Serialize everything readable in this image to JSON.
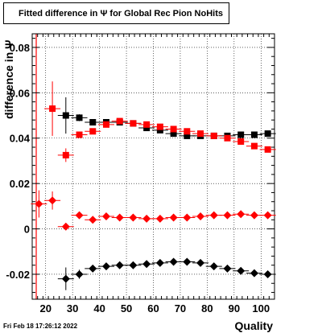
{
  "chart_data": {
    "type": "scatter",
    "title": "Fitted difference in  Ψ  for Global Rec Pion NoHits",
    "xlabel": "Quality",
    "ylabel": "difference in Ψ",
    "xlim": [
      15,
      105
    ],
    "ylim": [
      -0.031,
      0.086
    ],
    "xticks": [
      20,
      30,
      40,
      50,
      60,
      70,
      80,
      90,
      100
    ],
    "yticks": [
      -0.02,
      0,
      0.02,
      0.04,
      0.06,
      0.08
    ],
    "ytick_labels": [
      "-0.02",
      "0",
      "0.02",
      "0.04",
      "0.06",
      "0.08"
    ],
    "grid": true,
    "vertical_line_x": 16.5,
    "series": [
      {
        "marker": "square",
        "color": "#000000",
        "x": [
          27.5,
          32.5,
          37.5,
          42.5,
          47.5,
          52.5,
          57.5,
          62.5,
          67.5,
          72.5,
          77.5,
          82.5,
          87.5,
          92.5,
          97.5,
          102.5
        ],
        "y": [
          0.05,
          0.049,
          0.047,
          0.047,
          0.047,
          0.0465,
          0.0445,
          0.0435,
          0.042,
          0.041,
          0.041,
          0.041,
          0.041,
          0.0415,
          0.0415,
          0.042
        ],
        "err": [
          0.008,
          0.0015,
          0.001,
          0.001,
          0.001,
          0.001,
          0.001,
          0.001,
          0.001,
          0.001,
          0.001,
          0.001,
          0.001,
          0.001,
          0.001,
          0.001
        ]
      },
      {
        "marker": "square",
        "color": "#ff0000",
        "x": [
          22.5,
          27.5,
          32.5,
          37.5,
          42.5,
          47.5,
          52.5,
          57.5,
          62.5,
          67.5,
          72.5,
          77.5,
          82.5,
          87.5,
          92.5,
          97.5,
          102.5
        ],
        "y": [
          0.053,
          0.0325,
          0.0415,
          0.043,
          0.046,
          0.0475,
          0.0465,
          0.046,
          0.045,
          0.044,
          0.043,
          0.042,
          0.041,
          0.04,
          0.0385,
          0.0365,
          0.035
        ],
        "err": [
          0.012,
          0.003,
          0.001,
          0.001,
          0.001,
          0.001,
          0.001,
          0.001,
          0.001,
          0.001,
          0.001,
          0.001,
          0.001,
          0.001,
          0.001,
          0.001,
          0.001
        ]
      },
      {
        "marker": "diamond",
        "color": "#ff0000",
        "x": [
          17.5,
          22.5,
          27.5,
          32.5,
          37.5,
          42.5,
          47.5,
          52.5,
          57.5,
          62.5,
          67.5,
          72.5,
          77.5,
          82.5,
          87.5,
          92.5,
          97.5,
          102.5
        ],
        "y": [
          0.011,
          0.0125,
          0.001,
          0.006,
          0.004,
          0.0055,
          0.005,
          0.005,
          0.0045,
          0.0045,
          0.005,
          0.005,
          0.0055,
          0.006,
          0.006,
          0.0065,
          0.006,
          0.006
        ],
        "err": [
          0.006,
          0.004,
          0.001,
          0.001,
          0.001,
          0.001,
          0.001,
          0.001,
          0.001,
          0.001,
          0.001,
          0.001,
          0.001,
          0.001,
          0.001,
          0.001,
          0.001,
          0.001
        ]
      },
      {
        "marker": "diamond",
        "color": "#000000",
        "x": [
          27.5,
          32.5,
          37.5,
          42.5,
          47.5,
          52.5,
          57.5,
          62.5,
          67.5,
          72.5,
          77.5,
          82.5,
          87.5,
          92.5,
          97.5,
          102.5
        ],
        "y": [
          -0.022,
          -0.02,
          -0.0175,
          -0.0165,
          -0.016,
          -0.016,
          -0.0155,
          -0.015,
          -0.0145,
          -0.0145,
          -0.015,
          -0.0165,
          -0.0175,
          -0.0185,
          -0.0195,
          -0.02
        ],
        "err": [
          0.005,
          0.002,
          0.001,
          0.001,
          0.001,
          0.001,
          0.001,
          0.001,
          0.001,
          0.001,
          0.001,
          0.001,
          0.001,
          0.001,
          0.001,
          0.001
        ]
      }
    ]
  },
  "footer": {
    "date": "Fri Feb 18 17:26:12 2022"
  }
}
